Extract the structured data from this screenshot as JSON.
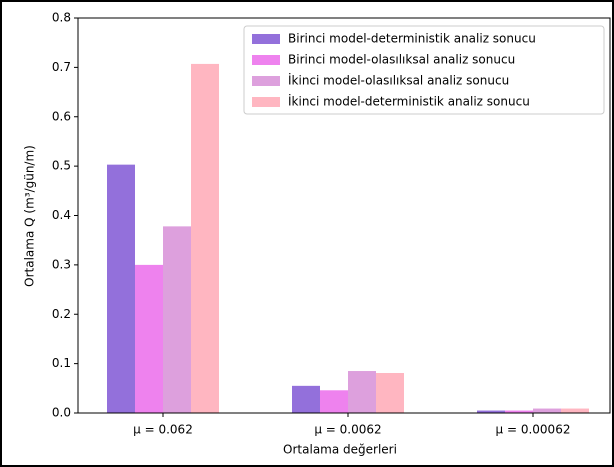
{
  "chart_data": {
    "type": "grouped_bar",
    "xlabel": "Ortalama değerleri",
    "ylabel": "Ortalama Q (m³/gün/m)",
    "categories": [
      "μ = 0.062",
      "μ = 0.0062",
      "μ = 0.00062"
    ],
    "series": [
      {
        "name": "Birinci model-deterministik analiz sonucu",
        "color": "#9370db",
        "values": [
          0.503,
          0.055,
          0.005
        ]
      },
      {
        "name": "Birinci model-olasılıksal analiz sonucu",
        "color": "#ee82ee",
        "values": [
          0.3,
          0.046,
          0.005
        ]
      },
      {
        "name": "İkinci model-olasılıksal analiz sonucu",
        "color": "#dda0dd",
        "values": [
          0.378,
          0.085,
          0.009
        ]
      },
      {
        "name": "İkinci model-deterministik analiz sonucu",
        "color": "#ffb6c1",
        "values": [
          0.707,
          0.081,
          0.009
        ]
      }
    ],
    "ylim": [
      0,
      0.8
    ],
    "yticks": [
      {
        "value": 0,
        "label": "0.0"
      },
      0.1,
      0.2,
      0.3,
      0.4,
      0.5,
      0.6,
      0.7,
      0.8
    ],
    "legend": "upper right"
  }
}
